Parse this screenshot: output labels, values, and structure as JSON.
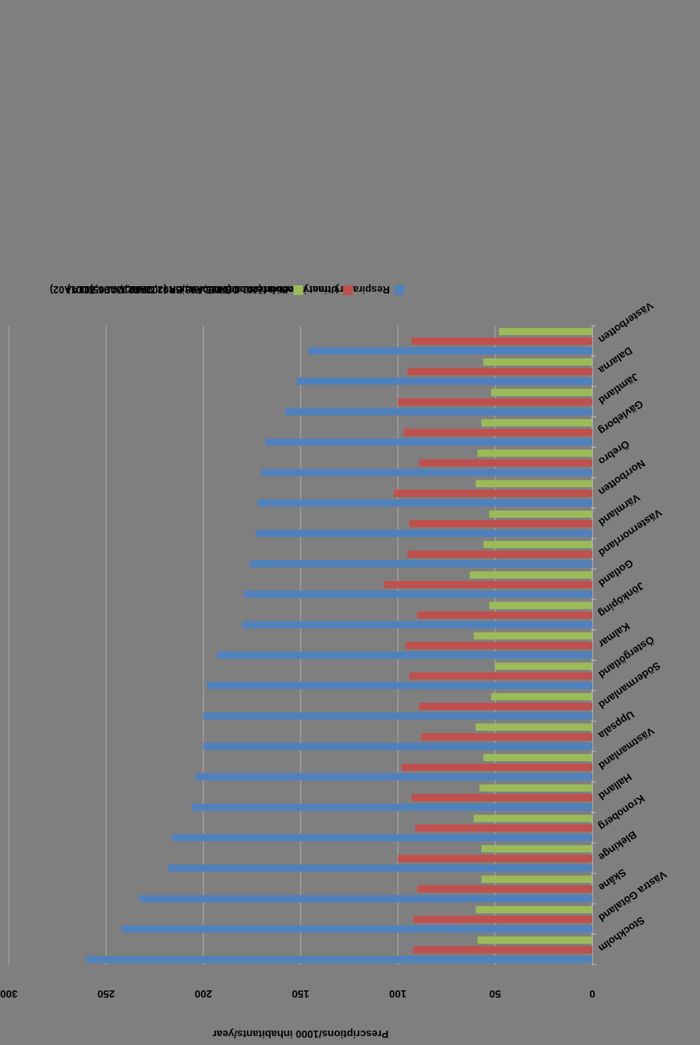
{
  "colors": {
    "background": "#7f7f7f",
    "grid": "#a6a6a6",
    "respiratory": "#4f81bd",
    "urinary": "#c0504d",
    "soft_tissue": "#9bbb59"
  },
  "chart_data": {
    "type": "bar",
    "orientation": "horizontal, rendered rotated 180 degrees",
    "title": "",
    "xlabel": "Prescriptions/1000 inhabitants/year",
    "ylabel": "",
    "xlim": [
      0,
      300
    ],
    "xticks": [
      "0",
      "50",
      "100",
      "150",
      "200",
      "250",
      "300"
    ],
    "grid": true,
    "legend_position": "top",
    "categories": [
      "Stockholm",
      "Västra Götaland",
      "Skåne",
      "Blekinge",
      "Kronoberg",
      "Halland",
      "Västmanland",
      "Uppsala",
      "Södermanland",
      "Östergötland",
      "Kalmar",
      "Jönköping",
      "Gotland",
      "Västernorrland",
      "Värmland",
      "Norrbotten",
      "Örebro",
      "Gävleborg",
      "Jämtland",
      "Dalarna",
      "Västerbotten"
    ],
    "series": [
      {
        "name": "Respiratory tract infection (J01 DB-DE, FA, CR02,CE02, CA04,J01AA02)",
        "color": "#4f81bd",
        "values": [
          260,
          242,
          233,
          218,
          216,
          206,
          204,
          200,
          200,
          198,
          193,
          180,
          179,
          176,
          173,
          172,
          170,
          168,
          158,
          152,
          146
        ]
      },
      {
        "name": "Urinary tract infection (J01CA08,EA01,MA02,MA06,XD01)",
        "color": "#c0504d",
        "values": [
          92,
          92,
          90,
          100,
          91,
          93,
          98,
          88,
          89,
          94,
          96,
          90,
          107,
          95,
          94,
          102,
          89,
          97,
          100,
          95,
          93
        ]
      },
      {
        "name": "Soft tissue/skin infection (J01FF01, CF05)",
        "color": "#9bbb59",
        "values": [
          59,
          60,
          57,
          57,
          61,
          58,
          56,
          60,
          52,
          50,
          61,
          53,
          63,
          56,
          53,
          60,
          59,
          57,
          52,
          56,
          48
        ]
      }
    ]
  }
}
